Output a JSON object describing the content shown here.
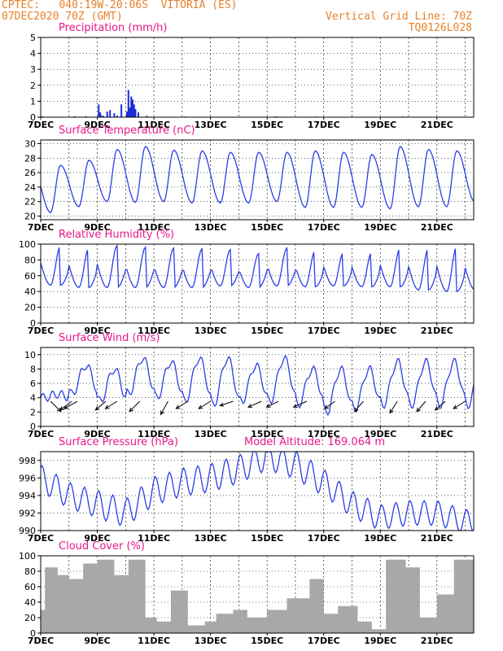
{
  "header": {
    "line1": "CPTEC:   040:19W-20:06S  VITORIA (ES)",
    "line2": "07DEC2020 70Z (GMT)",
    "right1": "Vertical Grid Line: 70Z",
    "right2": "TQ0126L028"
  },
  "colors": {
    "header": "#e8802a",
    "title": "#e8178a",
    "line": "#2a3fe6",
    "bar": "#1a2dd9",
    "cloud": "#a8a8a8",
    "arrow": "#000000"
  },
  "x_tick_labels": [
    "7DEC",
    "9DEC",
    "11DEC",
    "13DEC",
    "15DEC",
    "17DEC",
    "19DEC",
    "21DEC"
  ],
  "x_tick_index": [
    0,
    2,
    4,
    6,
    8,
    10,
    12,
    14
  ],
  "x_days_total": 15.3,
  "chart_data": [
    {
      "id": "precip",
      "type": "bar",
      "title": "Precipitation (mm/h)",
      "ylim": [
        0,
        5
      ],
      "yticks": [
        "0",
        "1",
        "2",
        "3",
        "4",
        "5"
      ],
      "x_unit": "days since 07DEC 00Z",
      "x": [
        0.05,
        0.1,
        0.5,
        0.8,
        1.2,
        1.6,
        2.05,
        2.1,
        2.12,
        2.2,
        2.35,
        2.45,
        2.6,
        2.7,
        2.85,
        3.05,
        3.1,
        3.15,
        3.2,
        3.25,
        3.3,
        3.35,
        3.45,
        3.75,
        5.1,
        6.2,
        8.3,
        9.7,
        11.5,
        12.8,
        14.2
      ],
      "values": [
        0.05,
        0.03,
        0.03,
        0.02,
        0.05,
        0.06,
        0.8,
        0.3,
        0.15,
        0.1,
        0.35,
        0.45,
        0.25,
        0.1,
        0.8,
        0.35,
        1.7,
        0.6,
        1.3,
        1.1,
        0.8,
        0.5,
        0.3,
        0.08,
        0.04,
        0.03,
        0.05,
        0.04,
        0.03,
        0.04,
        0.03
      ]
    },
    {
      "id": "temp",
      "type": "line",
      "title": "Surface Temperature (nC)",
      "ylim": [
        19.5,
        30.5
      ],
      "yticks": [
        "20",
        "22",
        "24",
        "26",
        "28",
        "30"
      ],
      "daily_min": [
        20.5,
        21.3,
        22.0,
        21.9,
        22.0,
        21.8,
        21.8,
        21.8,
        22.0,
        21.2,
        21.2,
        21.2,
        21.0,
        21.3,
        21.3,
        21.9
      ],
      "daily_max": [
        27.0,
        27.7,
        29.2,
        29.6,
        29.1,
        29.0,
        28.8,
        28.8,
        28.8,
        29.0,
        28.8,
        28.5,
        29.6,
        29.2,
        29.0,
        29.0
      ]
    },
    {
      "id": "rh",
      "type": "line",
      "title": "Relative Humidity (%)",
      "ylim": [
        0,
        100
      ],
      "yticks": [
        "0",
        "20",
        "40",
        "60",
        "80",
        "100"
      ],
      "daily_max": [
        98,
        95,
        98,
        96,
        95,
        94,
        93,
        88,
        95,
        92,
        90,
        90,
        95,
        95,
        97,
        92
      ],
      "daily_min": [
        48,
        45,
        45,
        45,
        45,
        45,
        47,
        45,
        47,
        46,
        47,
        46,
        46,
        42,
        40,
        42
      ]
    },
    {
      "id": "wind",
      "type": "line",
      "title": "Surface Wind (m/s)",
      "ylim": [
        0,
        11
      ],
      "yticks": [
        "0",
        "2",
        "4",
        "6",
        "8",
        "10"
      ],
      "speed_daily": [
        4.5,
        8.5,
        8.0,
        9.5,
        9.0,
        9.5,
        9.5,
        8.5,
        9.5,
        8.0,
        8.0,
        8.0,
        9.0,
        9.0,
        9.0,
        9.5
      ],
      "speed_night": [
        4.0,
        4.5,
        3.5,
        4.5,
        4.0,
        3.5,
        3.0,
        3.5,
        3.5,
        3.0,
        2.0,
        2.5,
        3.0,
        3.0,
        3.0,
        3.0
      ],
      "vectors": [
        {
          "x": 0.35,
          "u": 0.7,
          "v": -0.7
        },
        {
          "x": 1.1,
          "u": -0.8,
          "v": -0.6
        },
        {
          "x": 1.3,
          "u": -0.9,
          "v": -0.5
        },
        {
          "x": 2.3,
          "u": -0.7,
          "v": -0.6
        },
        {
          "x": 2.7,
          "u": -0.8,
          "v": -0.5
        },
        {
          "x": 3.5,
          "u": -0.7,
          "v": -0.7
        },
        {
          "x": 4.5,
          "u": -0.5,
          "v": -0.9
        },
        {
          "x": 5.2,
          "u": -0.8,
          "v": -0.5
        },
        {
          "x": 6.0,
          "u": -0.8,
          "v": -0.5
        },
        {
          "x": 6.8,
          "u": -0.9,
          "v": -0.3
        },
        {
          "x": 7.8,
          "u": -0.9,
          "v": -0.4
        },
        {
          "x": 8.4,
          "u": -0.8,
          "v": -0.4
        },
        {
          "x": 9.4,
          "u": -0.9,
          "v": -0.4
        },
        {
          "x": 10.4,
          "u": -0.7,
          "v": -0.5
        },
        {
          "x": 11.4,
          "u": -0.6,
          "v": -0.7
        },
        {
          "x": 12.6,
          "u": -0.5,
          "v": -0.8
        },
        {
          "x": 13.6,
          "u": -0.6,
          "v": -0.7
        },
        {
          "x": 14.3,
          "u": -0.7,
          "v": -0.6
        },
        {
          "x": 15.0,
          "u": -0.8,
          "v": -0.5
        }
      ]
    },
    {
      "id": "pres",
      "type": "line",
      "title": "Surface Pressure (hPa)",
      "subtitle": "Model Altitude: 169.064 m",
      "ylim": [
        990,
        999
      ],
      "yticks": [
        "990",
        "992",
        "994",
        "996",
        "998"
      ],
      "daily_mean": [
        996.0,
        994.0,
        993.0,
        992.0,
        994.5,
        995.5,
        996.0,
        997.0,
        998.5,
        997.5,
        995.5,
        993.0,
        991.5,
        992.0,
        992.0,
        991.0
      ],
      "semidiurnal_amp": [
        1.5,
        1.5,
        1.6,
        1.6,
        1.6,
        1.6,
        1.6,
        1.6,
        1.6,
        1.6,
        1.5,
        1.5,
        1.4,
        1.4,
        1.4,
        1.4
      ]
    },
    {
      "id": "cloud",
      "type": "area",
      "title": "Cloud Cover (%)",
      "ylim": [
        0,
        100
      ],
      "yticks": [
        "0",
        "20",
        "40",
        "60",
        "80",
        "100"
      ],
      "segments": [
        {
          "from": 0.0,
          "to": 0.15,
          "v": 30
        },
        {
          "from": 0.15,
          "to": 0.6,
          "v": 85
        },
        {
          "from": 0.6,
          "to": 1.0,
          "v": 75
        },
        {
          "from": 1.0,
          "to": 1.5,
          "v": 70
        },
        {
          "from": 1.5,
          "to": 2.0,
          "v": 90
        },
        {
          "from": 2.0,
          "to": 2.6,
          "v": 95
        },
        {
          "from": 2.6,
          "to": 3.1,
          "v": 75
        },
        {
          "from": 3.1,
          "to": 3.7,
          "v": 95
        },
        {
          "from": 3.7,
          "to": 4.1,
          "v": 20
        },
        {
          "from": 4.1,
          "to": 4.6,
          "v": 15
        },
        {
          "from": 4.6,
          "to": 5.2,
          "v": 55
        },
        {
          "from": 5.2,
          "to": 5.8,
          "v": 10
        },
        {
          "from": 5.8,
          "to": 6.2,
          "v": 15
        },
        {
          "from": 6.2,
          "to": 6.8,
          "v": 25
        },
        {
          "from": 6.8,
          "to": 7.3,
          "v": 30
        },
        {
          "from": 7.3,
          "to": 8.0,
          "v": 20
        },
        {
          "from": 8.0,
          "to": 8.7,
          "v": 30
        },
        {
          "from": 8.7,
          "to": 9.5,
          "v": 45
        },
        {
          "from": 9.5,
          "to": 10.0,
          "v": 70
        },
        {
          "from": 10.0,
          "to": 10.5,
          "v": 25
        },
        {
          "from": 10.5,
          "to": 11.2,
          "v": 35
        },
        {
          "from": 11.2,
          "to": 11.7,
          "v": 15
        },
        {
          "from": 11.7,
          "to": 12.2,
          "v": 5
        },
        {
          "from": 12.2,
          "to": 12.9,
          "v": 95
        },
        {
          "from": 12.9,
          "to": 13.4,
          "v": 85
        },
        {
          "from": 13.4,
          "to": 14.0,
          "v": 20
        },
        {
          "from": 14.0,
          "to": 14.6,
          "v": 50
        },
        {
          "from": 14.6,
          "to": 15.3,
          "v": 95
        }
      ]
    }
  ]
}
